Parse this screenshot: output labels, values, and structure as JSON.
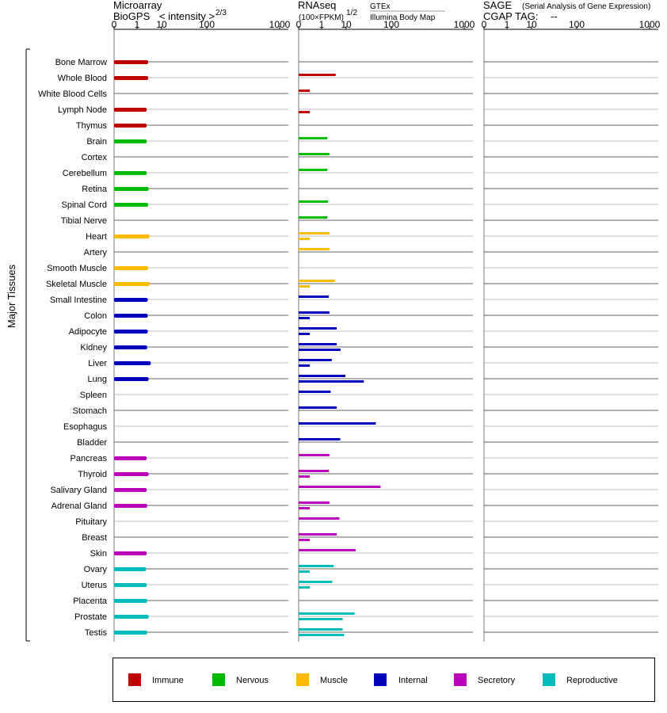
{
  "chart_data": {
    "type": "bar",
    "y_group_label": "Major Tissues",
    "panels": [
      {
        "id": "microarray",
        "title": "Microarray",
        "subtitle": "BioGPS",
        "scale_label": "< intensity >",
        "scale_exponent": "2/3"
      },
      {
        "id": "rnaseq",
        "title": "RNAseq",
        "scale_label": "(100×FPKM)",
        "scale_exponent": "1/2",
        "source_1": "GTEx",
        "source_2": "Illumina Body Map"
      },
      {
        "id": "sage",
        "title": "SAGE",
        "title_note": "(Serial Analysis of Gene Expression)",
        "tag_label": "CGAP TAG:",
        "tag_value": "--"
      }
    ],
    "ticks": [
      "0",
      "1",
      "10",
      "100",
      "1000"
    ],
    "groups": [
      {
        "name": "Immune",
        "color": "#c00000"
      },
      {
        "name": "Nervous",
        "color": "#00bb00"
      },
      {
        "name": "Muscle",
        "color": "#ffbb00"
      },
      {
        "name": "Internal",
        "color": "#0000bb"
      },
      {
        "name": "Secretory",
        "color": "#bb00bb"
      },
      {
        "name": "Reproductive",
        "color": "#00bbbb"
      }
    ],
    "tissues": [
      {
        "name": "Bone Marrow",
        "group": 0,
        "microarray": 1.8,
        "gtex": null,
        "ibm": null
      },
      {
        "name": "Whole Blood",
        "group": 0,
        "microarray": 1.8,
        "gtex": 2.5,
        "ibm": null
      },
      {
        "name": "White Blood Cells",
        "group": 0,
        "microarray": null,
        "gtex": 0.02,
        "ibm": null
      },
      {
        "name": "Lymph Node",
        "group": 0,
        "microarray": 1.5,
        "gtex": null,
        "ibm": 0.02
      },
      {
        "name": "Thymus",
        "group": 0,
        "microarray": 1.5,
        "gtex": null,
        "ibm": null
      },
      {
        "name": "Brain",
        "group": 1,
        "microarray": 1.5,
        "gtex": 0.9,
        "ibm": null
      },
      {
        "name": "Cortex",
        "group": 1,
        "microarray": null,
        "gtex": 1.2,
        "ibm": null
      },
      {
        "name": "Cerebellum",
        "group": 1,
        "microarray": 1.5,
        "gtex": 0.9,
        "ibm": null
      },
      {
        "name": "Retina",
        "group": 1,
        "microarray": 1.9,
        "gtex": null,
        "ibm": null
      },
      {
        "name": "Spinal Cord",
        "group": 1,
        "microarray": 1.8,
        "gtex": 1.0,
        "ibm": null
      },
      {
        "name": "Tibial Nerve",
        "group": 1,
        "microarray": null,
        "gtex": 0.9,
        "ibm": null
      },
      {
        "name": "Heart",
        "group": 2,
        "microarray": 2.1,
        "gtex": 1.2,
        "ibm": 0.02
      },
      {
        "name": "Artery",
        "group": 2,
        "microarray": null,
        "gtex": 1.2,
        "ibm": null
      },
      {
        "name": "Smooth Muscle",
        "group": 2,
        "microarray": 1.8,
        "gtex": null,
        "ibm": null
      },
      {
        "name": "Skeletal Muscle",
        "group": 2,
        "microarray": 2.1,
        "gtex": 2.3,
        "ibm": 0.02
      },
      {
        "name": "Small Intestine",
        "group": 3,
        "microarray": 1.7,
        "gtex": 1.1,
        "ibm": null
      },
      {
        "name": "Colon",
        "group": 3,
        "microarray": 1.7,
        "gtex": 1.2,
        "ibm": 0.02
      },
      {
        "name": "Adipocyte",
        "group": 3,
        "microarray": 1.7,
        "gtex": 2.8,
        "ibm": 0.02
      },
      {
        "name": "Kidney",
        "group": 3,
        "microarray": 1.6,
        "gtex": 2.8,
        "ibm": 4.1
      },
      {
        "name": "Liver",
        "group": 3,
        "microarray": 2.4,
        "gtex": 1.6,
        "ibm": 0.02
      },
      {
        "name": "Lung",
        "group": 3,
        "microarray": 1.9,
        "gtex": 6.4,
        "ibm": 24.0
      },
      {
        "name": "Spleen",
        "group": 3,
        "microarray": null,
        "gtex": 1.4,
        "ibm": null
      },
      {
        "name": "Stomach",
        "group": 3,
        "microarray": null,
        "gtex": 2.8,
        "ibm": null
      },
      {
        "name": "Esophagus",
        "group": 3,
        "microarray": null,
        "gtex": 47.0,
        "ibm": null
      },
      {
        "name": "Bladder",
        "group": 3,
        "microarray": null,
        "gtex": 4.0,
        "ibm": null
      },
      {
        "name": "Pancreas",
        "group": 4,
        "microarray": 1.5,
        "gtex": 1.2,
        "ibm": null
      },
      {
        "name": "Thyroid",
        "group": 4,
        "microarray": 1.9,
        "gtex": 1.1,
        "ibm": 0.02
      },
      {
        "name": "Salivary Gland",
        "group": 4,
        "microarray": 1.5,
        "gtex": 60.0,
        "ibm": null
      },
      {
        "name": "Adrenal Gland",
        "group": 4,
        "microarray": 1.6,
        "gtex": 1.2,
        "ibm": 0.02
      },
      {
        "name": "Pituitary",
        "group": 4,
        "microarray": null,
        "gtex": 3.7,
        "ibm": null
      },
      {
        "name": "Breast",
        "group": 4,
        "microarray": null,
        "gtex": 2.8,
        "ibm": 0.02
      },
      {
        "name": "Skin",
        "group": 4,
        "microarray": 1.5,
        "gtex": 14.0,
        "ibm": null
      },
      {
        "name": "Ovary",
        "group": 5,
        "microarray": 1.4,
        "gtex": 2.0,
        "ibm": 0.02
      },
      {
        "name": "Uterus",
        "group": 5,
        "microarray": 1.5,
        "gtex": 1.7,
        "ibm": 0.02
      },
      {
        "name": "Placenta",
        "group": 5,
        "microarray": 1.6,
        "gtex": null,
        "ibm": null
      },
      {
        "name": "Prostate",
        "group": 5,
        "microarray": 1.9,
        "gtex": 13.0,
        "ibm": 5.0
      },
      {
        "name": "Testis",
        "group": 5,
        "microarray": 1.6,
        "gtex": 5.0,
        "ibm": 5.7
      }
    ]
  }
}
